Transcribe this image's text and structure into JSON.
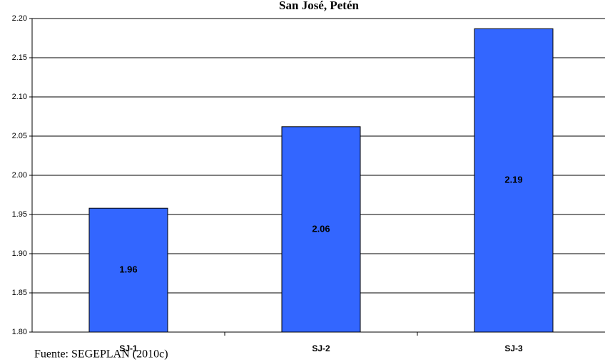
{
  "chart_data": {
    "type": "bar",
    "title": "San José, Petén",
    "categories": [
      "SJ-1",
      "SJ-2",
      "SJ-3"
    ],
    "values": [
      1.958,
      2.062,
      2.187
    ],
    "value_labels": [
      "1.96",
      "2.06",
      "2.19"
    ],
    "color": "#3366ff",
    "ylim": [
      1.8,
      2.2
    ],
    "yticks": [
      {
        "value": 1.8,
        "label": "1.80"
      },
      {
        "value": 1.85,
        "label": "1.85"
      },
      {
        "value": 1.9,
        "label": "1.90"
      },
      {
        "value": 1.95,
        "label": "1.95"
      },
      {
        "value": 2.0,
        "label": "2.00"
      },
      {
        "value": 2.05,
        "label": "2.05"
      },
      {
        "value": 2.1,
        "label": "2.10"
      },
      {
        "value": 2.15,
        "label": "2.15"
      },
      {
        "value": 2.2,
        "label": "2.20"
      }
    ],
    "grid": true,
    "note": "Fuente: SEGEPLAN (2010c)"
  }
}
